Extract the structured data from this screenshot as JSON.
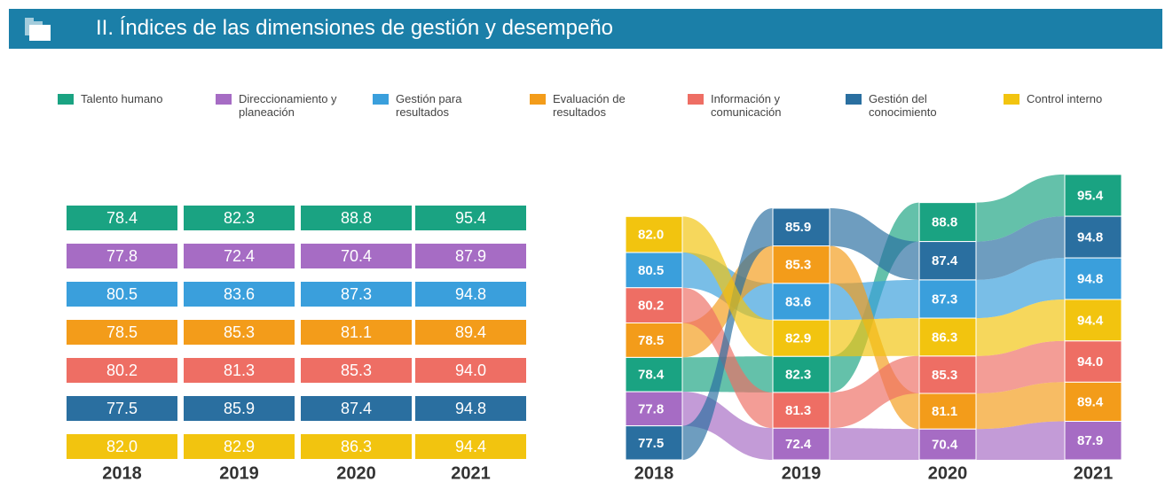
{
  "header": {
    "title": "II. Índices de las dimensiones de gestión y desempeño"
  },
  "chart_data": [
    {
      "type": "table",
      "categories": [
        "2018",
        "2019",
        "2020",
        "2021"
      ],
      "series": [
        {
          "name": "Talento humano",
          "color": "#1aa382",
          "values": [
            78.4,
            82.3,
            88.8,
            95.4
          ]
        },
        {
          "name": "Direccionamiento y planeación",
          "color": "#a66cc4",
          "values": [
            77.8,
            72.4,
            70.4,
            87.9
          ]
        },
        {
          "name": "Gestión para resultados",
          "color": "#3a9fdc",
          "values": [
            80.5,
            83.6,
            87.3,
            94.8
          ]
        },
        {
          "name": "Evaluación de resultados",
          "color": "#f39c1a",
          "values": [
            78.5,
            85.3,
            81.1,
            89.4
          ]
        },
        {
          "name": "Información y comunicación",
          "color": "#ee6e64",
          "values": [
            80.2,
            81.3,
            85.3,
            94.0
          ],
          "value_labels": [
            "80.2",
            "81.3",
            "85.3",
            "94.0"
          ]
        },
        {
          "name": "Gestión del conocimiento",
          "color": "#2a6fa0",
          "values": [
            77.5,
            85.9,
            87.4,
            94.8
          ]
        },
        {
          "name": "Control interno",
          "color": "#f2c40f",
          "values": [
            82.0,
            82.9,
            86.3,
            94.4
          ],
          "value_labels": [
            "82.0",
            "82.9",
            "86.3",
            "94.4"
          ]
        }
      ]
    },
    {
      "type": "ribbon",
      "categories": [
        "2018",
        "2019",
        "2020",
        "2021"
      ],
      "series": [
        {
          "color": "#1aa382",
          "values": [
            78.4,
            82.3,
            88.8,
            95.4
          ]
        },
        {
          "color": "#a66cc4",
          "values": [
            77.8,
            72.4,
            70.4,
            87.9
          ]
        },
        {
          "color": "#3a9fdc",
          "values": [
            80.5,
            83.6,
            87.3,
            94.8
          ]
        },
        {
          "color": "#f39c1a",
          "values": [
            78.5,
            85.3,
            81.1,
            89.4
          ]
        },
        {
          "color": "#ee6e64",
          "values": [
            80.2,
            81.3,
            85.3,
            94.0
          ],
          "value_labels": [
            "80.2",
            "81.3",
            "85.3",
            "94.0"
          ]
        },
        {
          "color": "#2a6fa0",
          "values": [
            77.5,
            85.9,
            87.4,
            94.8
          ]
        },
        {
          "color": "#f2c40f",
          "values": [
            82.0,
            82.9,
            86.3,
            94.4
          ],
          "value_labels": [
            "82.0",
            "82.9",
            "86.3",
            "94.4"
          ]
        }
      ]
    }
  ]
}
